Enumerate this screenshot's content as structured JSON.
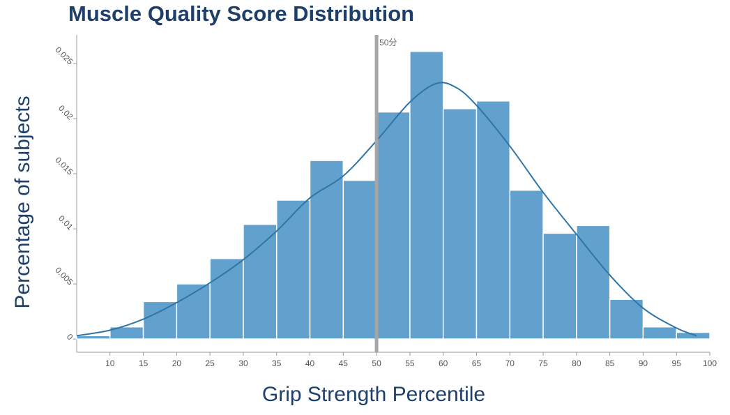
{
  "chart_data": {
    "type": "histogram",
    "title": "Muscle Quality Score Distribution",
    "x_label": "Grip Strength Percentile",
    "y_label": "Percentage of subjects",
    "bins": [
      5,
      10,
      15,
      20,
      25,
      30,
      35,
      40,
      45,
      50,
      55,
      60,
      65,
      70,
      75,
      80,
      85,
      90,
      95,
      100
    ],
    "counts": [
      0.0003,
      0.0011,
      0.0034,
      0.005,
      0.0073,
      0.0104,
      0.0126,
      0.0162,
      0.0144,
      0.0206,
      0.0261,
      0.0209,
      0.0216,
      0.0135,
      0.0096,
      0.0103,
      0.0036,
      0.0011,
      0.0006
    ],
    "color": "#62a0cd",
    "kde": {
      "color": "#2e75a8",
      "x": [
        5,
        10,
        15,
        20,
        25,
        30,
        35,
        40,
        45,
        50,
        55,
        59,
        62,
        65,
        70,
        75,
        80,
        85,
        90,
        95,
        98
      ],
      "values": [
        0.0003,
        0.0008,
        0.0018,
        0.0033,
        0.0051,
        0.0072,
        0.0098,
        0.0128,
        0.0148,
        0.018,
        0.0215,
        0.0232,
        0.0228,
        0.0212,
        0.0175,
        0.0133,
        0.0095,
        0.0058,
        0.0028,
        0.001,
        0.0003
      ]
    },
    "annotation": {
      "x": 50,
      "label": "50分",
      "color": "#a6a6a6"
    },
    "xlim": [
      5,
      100
    ],
    "ylim": [
      -0.0012,
      0.0276
    ],
    "xticks": [
      10,
      15,
      20,
      25,
      30,
      35,
      40,
      45,
      50,
      55,
      60,
      65,
      70,
      75,
      80,
      85,
      90,
      95,
      100
    ],
    "yticks": [
      0,
      0.005,
      0.01,
      0.015,
      0.02,
      0.025
    ]
  }
}
